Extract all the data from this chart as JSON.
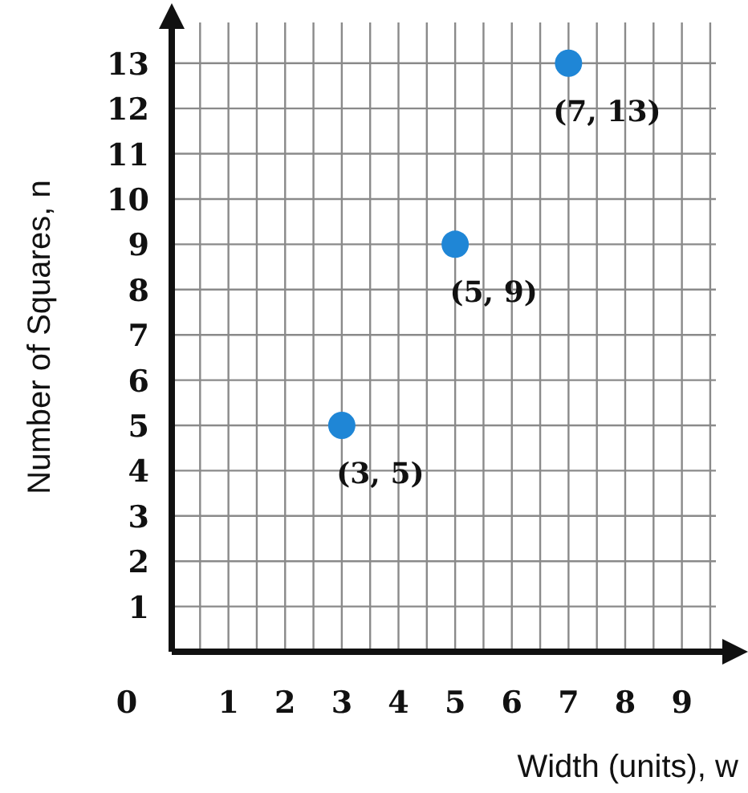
{
  "chart_data": {
    "type": "scatter",
    "xlabel": "Width (units), w",
    "ylabel": "Number of Squares, n",
    "x": [
      3,
      5,
      7
    ],
    "series": [
      {
        "color": "#1f86d6",
        "values": [
          5,
          9,
          13
        ],
        "value_labels": [
          "(3, 5)",
          "(5, 9)",
          "(7, 13)"
        ]
      }
    ],
    "xlim": [
      0,
      9.6
    ],
    "ylim": [
      0,
      13.9
    ],
    "xticks": [
      {
        "value": 0.5,
        "label": null
      },
      1,
      {
        "value": 1.5,
        "label": null
      },
      2,
      {
        "value": 2.5,
        "label": null
      },
      3,
      {
        "value": 3.5,
        "label": null
      },
      4,
      {
        "value": 4.5,
        "label": null
      },
      5,
      {
        "value": 5.5,
        "label": null
      },
      6,
      {
        "value": 6.5,
        "label": null
      },
      7,
      {
        "value": 7.5,
        "label": null
      },
      8,
      {
        "value": 8.5,
        "label": null
      },
      9,
      {
        "value": 9.5,
        "label": null
      }
    ],
    "yticks": [
      1,
      2,
      3,
      4,
      5,
      6,
      7,
      8,
      9,
      10,
      11,
      12,
      13
    ],
    "annotations": [
      "0"
    ],
    "grid": true,
    "marker": "circle"
  }
}
